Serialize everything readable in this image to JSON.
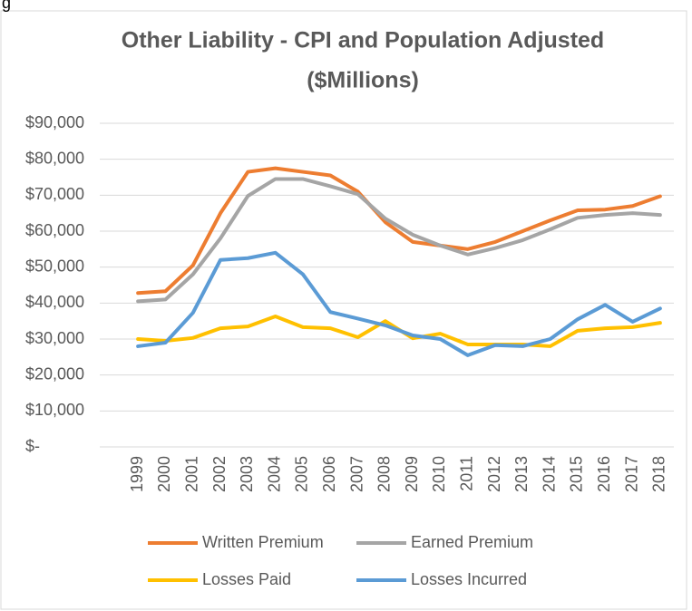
{
  "fragment": "g",
  "chart_data": {
    "type": "line",
    "title": [
      "Other Liability - CPI and Population Adjusted",
      "($Millions)"
    ],
    "categories": [
      "1999",
      "2000",
      "2001",
      "2002",
      "2003",
      "2004",
      "2005",
      "2006",
      "2007",
      "2008",
      "2009",
      "2010",
      "2011",
      "2012",
      "2013",
      "2014",
      "2015",
      "2016",
      "2017",
      "2018"
    ],
    "series": [
      {
        "name": "Written Premium",
        "color": "#ED7D31",
        "values": [
          42800,
          43300,
          50500,
          65000,
          76500,
          77500,
          76500,
          75500,
          71000,
          62500,
          57000,
          56000,
          55000,
          57000,
          60000,
          63000,
          65800,
          66000,
          67000,
          69700
        ]
      },
      {
        "name": "Earned Premium",
        "color": "#A5A5A5",
        "values": [
          40500,
          41000,
          48000,
          58000,
          69800,
          74500,
          74500,
          72500,
          70300,
          63500,
          59000,
          56000,
          53500,
          55300,
          57500,
          60500,
          63700,
          64500,
          65000,
          64500
        ]
      },
      {
        "name": "Losses Paid",
        "color": "#FFC000",
        "values": [
          30000,
          29500,
          30300,
          33000,
          33500,
          36300,
          33300,
          33000,
          30500,
          35000,
          30200,
          31500,
          28500,
          28500,
          28500,
          28000,
          32300,
          33000,
          33300,
          34500
        ]
      },
      {
        "name": "Losses Incurred",
        "color": "#5B9BD5",
        "values": [
          28000,
          29000,
          37300,
          52000,
          52500,
          54000,
          48000,
          37500,
          35700,
          33800,
          31000,
          30000,
          25500,
          28300,
          28000,
          30000,
          35500,
          39500,
          34800,
          38500
        ]
      }
    ],
    "ylim": [
      0,
      90000
    ],
    "yticks": [
      {
        "value": 0,
        "label": "$-"
      },
      {
        "value": 10000,
        "label": "$10,000"
      },
      {
        "value": 20000,
        "label": "$20,000"
      },
      {
        "value": 30000,
        "label": "$30,000"
      },
      {
        "value": 40000,
        "label": "$40,000"
      },
      {
        "value": 50000,
        "label": "$50,000"
      },
      {
        "value": 60000,
        "label": "$60,000"
      },
      {
        "value": 70000,
        "label": "$70,000"
      },
      {
        "value": 80000,
        "label": "$80,000"
      },
      {
        "value": 90000,
        "label": "$90,000"
      }
    ],
    "grid": true
  }
}
